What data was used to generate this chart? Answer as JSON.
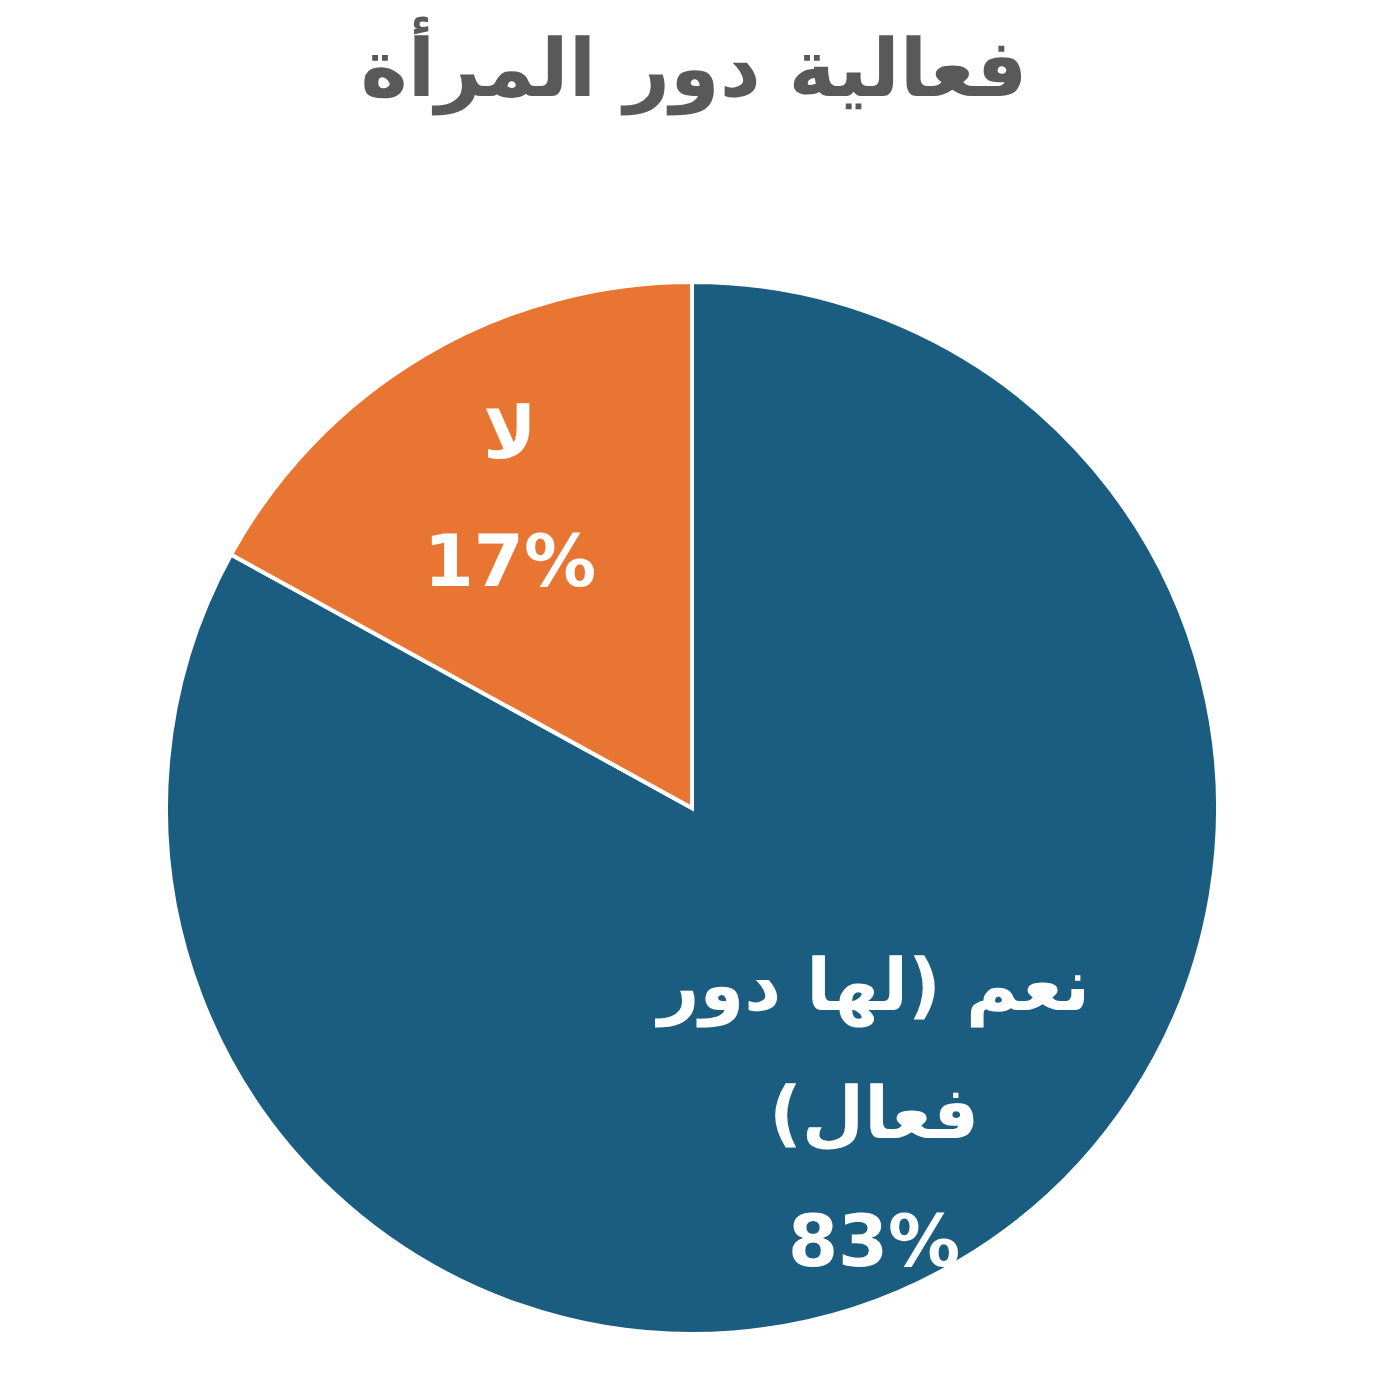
{
  "chart_data": {
    "type": "pie",
    "title": "فعالية دور المرأة",
    "categories": [
      "نعم (لها دور فعال)",
      "لا"
    ],
    "values": [
      83,
      17
    ],
    "colors": [
      "#1b5d80",
      "#e97532"
    ],
    "value_labels": [
      "83%",
      "17%"
    ]
  }
}
